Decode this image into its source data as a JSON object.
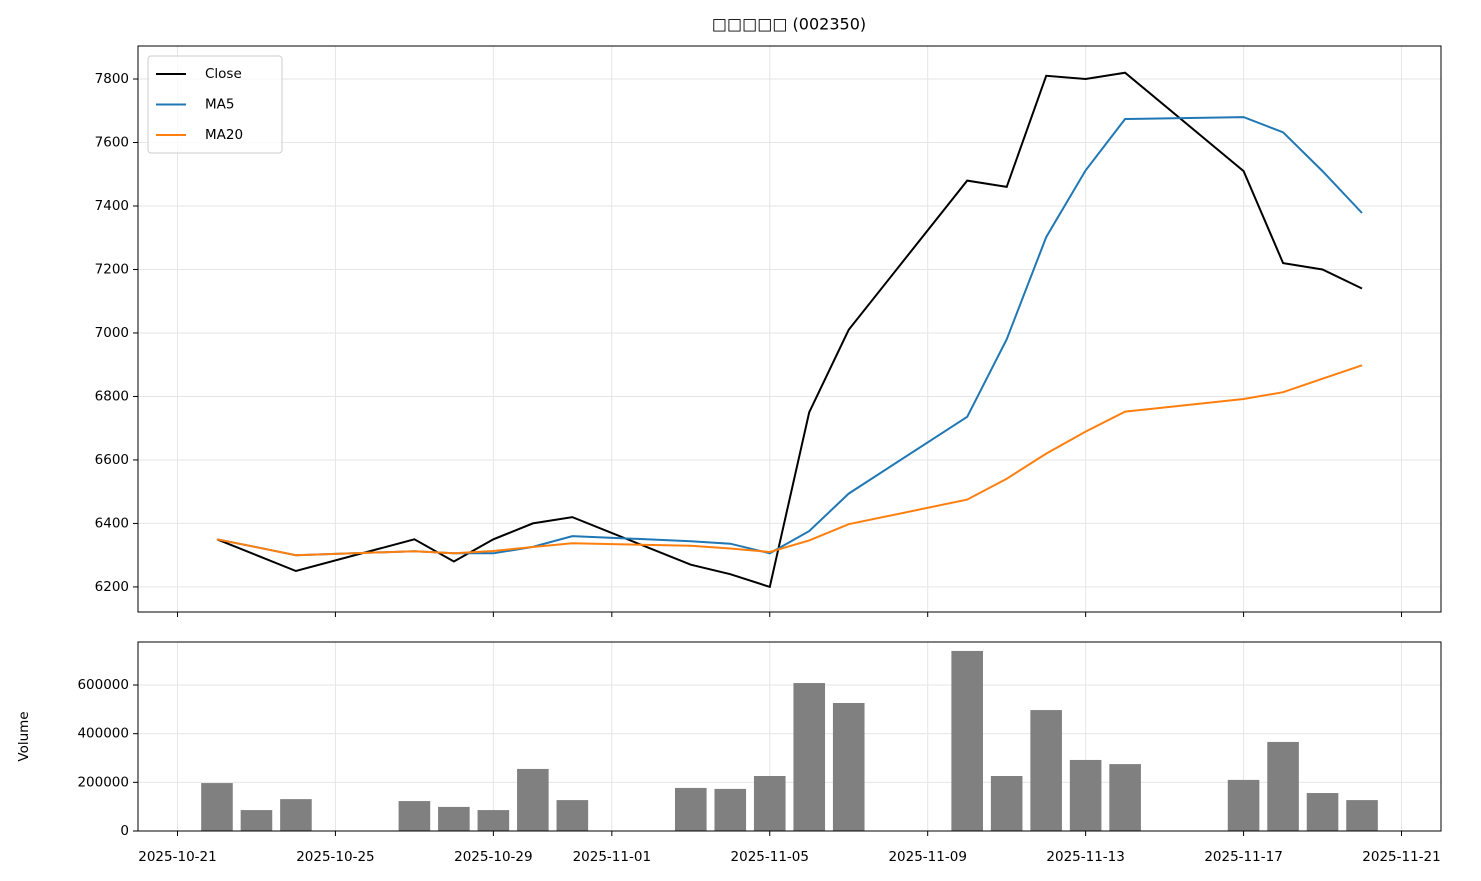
{
  "chart_data": [
    {
      "type": "line",
      "title": "□□□□□ (002350)",
      "x": [
        "2025-10-22",
        "2025-10-23",
        "2025-10-24",
        "2025-10-27",
        "2025-10-28",
        "2025-10-29",
        "2025-10-30",
        "2025-10-31",
        "2025-11-03",
        "2025-11-04",
        "2025-11-05",
        "2025-11-06",
        "2025-11-07",
        "2025-11-10",
        "2025-11-11",
        "2025-11-12",
        "2025-11-13",
        "2025-11-14",
        "2025-11-17",
        "2025-11-18",
        "2025-11-19",
        "2025-11-20"
      ],
      "series": [
        {
          "name": "Close",
          "color": "#000000",
          "values": [
            6350,
            6300,
            6250,
            6350,
            6280,
            6350,
            6400,
            6420,
            6270,
            6240,
            6200,
            6750,
            7010,
            7480,
            7460,
            7810,
            7800,
            7820,
            7510,
            7220,
            7200,
            7140
          ]
        },
        {
          "name": "MA5",
          "color": "#1f77b4",
          "values": [
            6350,
            6325,
            6300,
            6312.5,
            6306,
            6306,
            6326,
            6360,
            6344,
            6336,
            6306,
            6376,
            6494,
            6736,
            6980,
            7302,
            7512,
            7674,
            7680,
            7632,
            7510,
            7378
          ]
        },
        {
          "name": "MA20",
          "color": "#ff7f0e",
          "values": [
            6350,
            6325,
            6300,
            6312.5,
            6306,
            6313.3,
            6325.7,
            6337.5,
            6330,
            6321,
            6310,
            6346.7,
            6397.7,
            6475,
            6540.7,
            6620,
            6689.4,
            6752.2,
            6792.1,
            6813.5,
            6856,
            6898
          ]
        }
      ],
      "xlim": [
        "2025-10-20",
        "2025-11-22"
      ],
      "xticks": [
        "2025-10-21",
        "2025-10-25",
        "2025-10-29",
        "2025-11-01",
        "2025-11-05",
        "2025-11-09",
        "2025-11-13",
        "2025-11-17",
        "2025-11-21"
      ],
      "ylim": [
        6121,
        7904
      ],
      "yticks": [
        6200,
        6400,
        6600,
        6800,
        7000,
        7200,
        7400,
        7600,
        7800
      ],
      "grid": true,
      "legend": "upper left"
    },
    {
      "type": "bar",
      "ylabel": "Volume",
      "color": "#808080",
      "x": [
        "2025-10-22",
        "2025-10-23",
        "2025-10-24",
        "2025-10-27",
        "2025-10-28",
        "2025-10-29",
        "2025-10-30",
        "2025-10-31",
        "2025-11-03",
        "2025-11-04",
        "2025-11-05",
        "2025-11-06",
        "2025-11-07",
        "2025-11-10",
        "2025-11-11",
        "2025-11-12",
        "2025-11-13",
        "2025-11-14",
        "2025-11-17",
        "2025-11-18",
        "2025-11-19",
        "2025-11-20"
      ],
      "values": [
        197000,
        86000,
        131000,
        123000,
        99000,
        86000,
        255000,
        127000,
        177000,
        173000,
        226000,
        608000,
        526000,
        740000,
        226000,
        497000,
        292000,
        275000,
        210000,
        366000,
        156000,
        127000
      ],
      "xlim": [
        "2025-10-20",
        "2025-11-22"
      ],
      "xticks": [
        "2025-10-21",
        "2025-10-25",
        "2025-10-29",
        "2025-11-01",
        "2025-11-05",
        "2025-11-09",
        "2025-11-13",
        "2025-11-17",
        "2025-11-21"
      ],
      "ylim": [
        0,
        776700
      ],
      "yticks": [
        0,
        200000,
        400000,
        600000
      ],
      "grid": true
    }
  ]
}
